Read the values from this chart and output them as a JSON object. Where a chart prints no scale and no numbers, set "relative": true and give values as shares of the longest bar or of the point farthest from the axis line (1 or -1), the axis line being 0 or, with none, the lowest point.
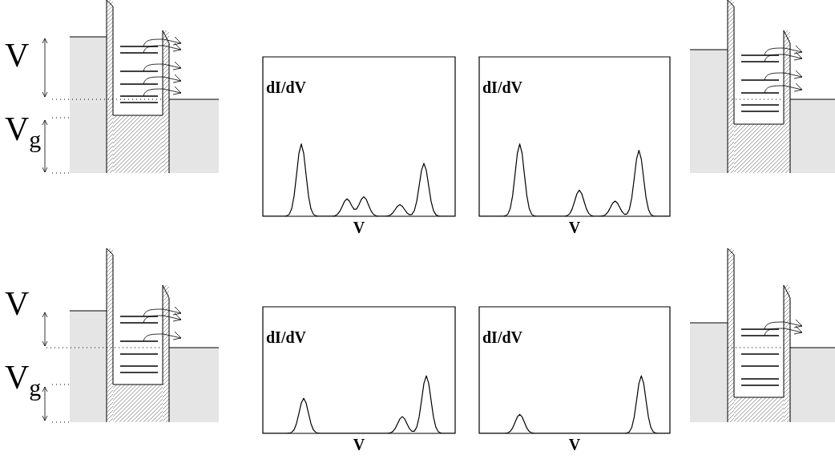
{
  "chart_data": [
    {
      "type": "other",
      "annotations": [
        "V",
        "V$_{g}$"
      ]
    },
    {
      "type": "line",
      "relative": true,
      "xlabel": "V",
      "ylabel": "dI/dV",
      "categories": [
        null,
        null,
        null,
        null,
        null,
        null,
        null,
        null,
        null,
        null,
        null,
        null,
        null,
        null,
        null,
        null,
        null,
        null,
        null,
        null,
        null,
        null,
        null,
        null,
        null,
        null,
        null,
        null,
        null,
        null,
        null,
        null,
        null,
        null,
        null,
        null,
        null,
        null,
        null,
        null,
        null,
        null,
        null,
        null,
        null,
        null,
        null,
        null,
        null,
        null,
        null,
        null,
        null,
        null,
        null,
        null,
        null,
        null,
        null,
        null,
        null,
        null,
        null,
        null,
        null,
        null,
        null,
        null,
        null,
        null,
        null,
        null,
        null,
        null,
        null,
        null,
        null,
        null,
        null,
        null,
        null
      ],
      "series": [
        {
          "color": "#000000",
          "values": [
            0,
            0,
            0,
            0,
            0,
            0,
            0,
            0,
            0,
            0,
            0.006,
            0.029,
            0.104,
            0.28,
            0.568,
            0.868,
            1,
            0.868,
            0.568,
            0.28,
            0.104,
            0.029,
            0.006,
            0,
            0,
            0,
            0,
            0,
            0,
            0.001,
            0.007,
            0.025,
            0.067,
            0.136,
            0.208,
            0.24,
            0.21,
            0.144,
            0.095,
            0.101,
            0.16,
            0.235,
            0.27,
            0.234,
            0.153,
            0.076,
            0.028,
            0.008,
            0.002,
            0,
            0,
            0.001,
            0.005,
            0.017,
            0.045,
            0.091,
            0.139,
            0.16,
            0.139,
            0.091,
            0.045,
            0.021,
            0.026,
            0.077,
            0.204,
            0.415,
            0.634,
            0.73,
            0.634,
            0.415,
            0.204,
            0.076,
            0.021,
            0.004,
            0,
            0,
            0,
            0,
            0,
            0,
            0
          ]
        }
      ]
    },
    {
      "type": "line",
      "relative": true,
      "xlabel": "V",
      "ylabel": "dI/dV",
      "categories": [
        null,
        null,
        null,
        null,
        null,
        null,
        null,
        null,
        null,
        null,
        null,
        null,
        null,
        null,
        null,
        null,
        null,
        null,
        null,
        null,
        null,
        null,
        null,
        null,
        null,
        null,
        null,
        null,
        null,
        null,
        null,
        null,
        null,
        null,
        null,
        null,
        null,
        null,
        null,
        null,
        null,
        null,
        null,
        null,
        null,
        null,
        null,
        null,
        null,
        null,
        null,
        null,
        null,
        null,
        null,
        null,
        null,
        null,
        null,
        null,
        null,
        null,
        null,
        null,
        null,
        null,
        null,
        null,
        null,
        null,
        null,
        null,
        null,
        null,
        null,
        null,
        null,
        null,
        null,
        null,
        null
      ],
      "series": [
        {
          "color": "#000000",
          "values": [
            0,
            0,
            0,
            0,
            0,
            0,
            0,
            0,
            0,
            0,
            0,
            0.006,
            0.029,
            0.104,
            0.28,
            0.568,
            0.868,
            1,
            0.868,
            0.568,
            0.28,
            0.104,
            0.029,
            0.006,
            0,
            0,
            0,
            0,
            0,
            0,
            0,
            0,
            0,
            0,
            0,
            0,
            0.002,
            0.01,
            0.037,
            0.101,
            0.204,
            0.312,
            0.36,
            0.312,
            0.204,
            0.101,
            0.037,
            0.01,
            0.002,
            0,
            0,
            0.001,
            0.006,
            0.022,
            0.059,
            0.119,
            0.182,
            0.21,
            0.182,
            0.119,
            0.059,
            0.027,
            0.032,
            0.096,
            0.255,
            0.517,
            0.79,
            0.91,
            0.79,
            0.517,
            0.255,
            0.095,
            0.026,
            0.005,
            0,
            0,
            0,
            0,
            0,
            0,
            0
          ]
        }
      ]
    },
    {
      "type": "other",
      "annotations": [
        "V",
        "V$_{g}$"
      ]
    },
    {
      "type": "line",
      "relative": true,
      "xlabel": "V",
      "ylabel": "dI/dV",
      "categories": [
        null,
        null,
        null,
        null,
        null,
        null,
        null,
        null,
        null,
        null,
        null,
        null,
        null,
        null,
        null,
        null,
        null,
        null,
        null,
        null,
        null,
        null,
        null,
        null,
        null,
        null,
        null,
        null,
        null,
        null,
        null,
        null,
        null,
        null,
        null,
        null,
        null,
        null,
        null,
        null,
        null,
        null,
        null,
        null,
        null,
        null,
        null,
        null,
        null,
        null,
        null,
        null,
        null,
        null,
        null,
        null,
        null,
        null,
        null,
        null,
        null,
        null,
        null,
        null,
        null,
        null,
        null,
        null,
        null,
        null,
        null,
        null,
        null,
        null,
        null,
        null,
        null,
        null,
        null,
        null,
        null
      ],
      "series": [
        {
          "color": "#000000",
          "values": [
            0,
            0,
            0,
            0,
            0,
            0,
            0,
            0,
            0,
            0,
            0,
            0.004,
            0.018,
            0.063,
            0.171,
            0.346,
            0.529,
            0.61,
            0.529,
            0.346,
            0.171,
            0.063,
            0.018,
            0.004,
            0,
            0,
            0,
            0,
            0,
            0,
            0,
            0,
            0,
            0,
            0,
            0,
            0,
            0,
            0,
            0,
            0,
            0,
            0,
            0,
            0,
            0,
            0,
            0,
            0,
            0,
            0,
            0,
            0.002,
            0.008,
            0.03,
            0.081,
            0.165,
            0.252,
            0.29,
            0.252,
            0.165,
            0.081,
            0.036,
            0.037,
            0.106,
            0.28,
            0.568,
            0.868,
            1,
            0.868,
            0.568,
            0.28,
            0.104,
            0.029,
            0.006,
            0,
            0,
            0,
            0,
            0,
            0
          ]
        }
      ]
    },
    {
      "type": "line",
      "relative": true,
      "xlabel": "V",
      "ylabel": "dI/dV",
      "categories": [
        null,
        null,
        null,
        null,
        null,
        null,
        null,
        null,
        null,
        null,
        null,
        null,
        null,
        null,
        null,
        null,
        null,
        null,
        null,
        null,
        null,
        null,
        null,
        null,
        null,
        null,
        null,
        null,
        null,
        null,
        null,
        null,
        null,
        null,
        null,
        null,
        null,
        null,
        null,
        null,
        null,
        null,
        null,
        null,
        null,
        null,
        null,
        null,
        null,
        null,
        null,
        null,
        null,
        null,
        null,
        null,
        null,
        null,
        null,
        null,
        null,
        null,
        null,
        null,
        null,
        null,
        null,
        null,
        null,
        null,
        null,
        null,
        null,
        null,
        null,
        null,
        null,
        null,
        null,
        null,
        null
      ],
      "series": [
        {
          "color": "#000000",
          "values": [
            0,
            0,
            0,
            0,
            0,
            0,
            0,
            0,
            0,
            0,
            0,
            0.002,
            0.01,
            0.034,
            0.092,
            0.187,
            0.286,
            0.33,
            0.286,
            0.187,
            0.092,
            0.034,
            0.01,
            0.002,
            0,
            0,
            0,
            0,
            0,
            0,
            0,
            0,
            0,
            0,
            0,
            0,
            0,
            0,
            0,
            0,
            0,
            0,
            0,
            0,
            0,
            0,
            0,
            0,
            0,
            0,
            0,
            0,
            0,
            0,
            0,
            0,
            0,
            0,
            0,
            0,
            0,
            0,
            0.006,
            0.029,
            0.104,
            0.28,
            0.568,
            0.868,
            1,
            0.868,
            0.568,
            0.28,
            0.104,
            0.029,
            0.006,
            0,
            0,
            0,
            0,
            0,
            0
          ]
        }
      ]
    }
  ]
}
